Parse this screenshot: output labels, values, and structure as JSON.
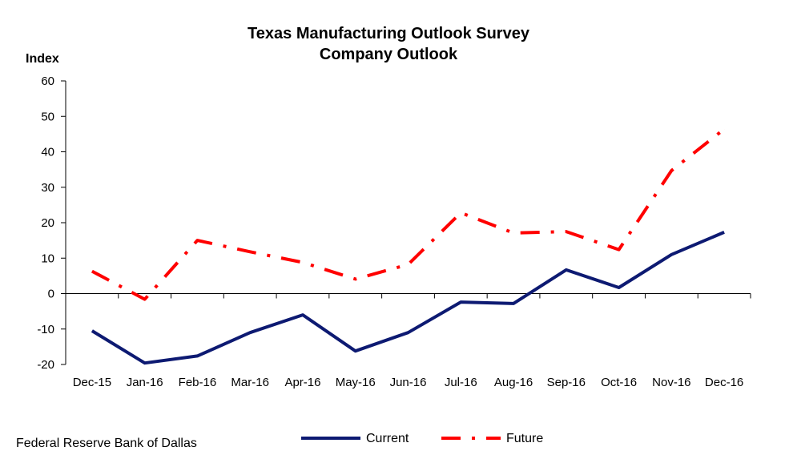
{
  "chart_data": {
    "type": "line",
    "title": "Texas Manufacturing Outlook Survey",
    "subtitle": "Company Outlook",
    "ylabel": "Index",
    "xlabel": "",
    "ylim": [
      -20,
      60
    ],
    "yticks": [
      -20,
      -10,
      0,
      10,
      20,
      30,
      40,
      50,
      60
    ],
    "grid": false,
    "legend_position": "bottom",
    "categories": [
      "Dec-15",
      "Jan-16",
      "Feb-16",
      "Mar-16",
      "Apr-16",
      "May-16",
      "Jun-16",
      "Jul-16",
      "Aug-16",
      "Sep-16",
      "Oct-16",
      "Nov-16",
      "Dec-16"
    ],
    "series": [
      {
        "name": "Current",
        "color": "#0d1a72",
        "style": "solid",
        "values": [
          -10.5,
          -19.6,
          -17.6,
          -11.0,
          -6.0,
          -16.2,
          -11.0,
          -2.4,
          -2.8,
          6.7,
          1.7,
          11.0,
          17.3
        ]
      },
      {
        "name": "Future",
        "color": "#ff0000",
        "style": "dash-dot",
        "values": [
          6.3,
          -1.6,
          15.0,
          11.8,
          8.8,
          4.1,
          8.2,
          22.8,
          17.1,
          17.5,
          12.4,
          34.7,
          46.4
        ]
      }
    ],
    "source": "Federal Reserve Bank of Dallas"
  }
}
